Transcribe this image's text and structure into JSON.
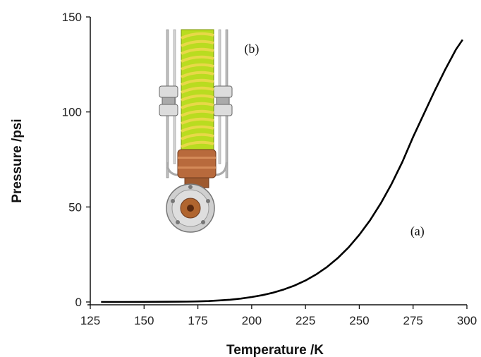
{
  "chart_data": {
    "type": "line",
    "title": "",
    "xlabel": "Temperature /K",
    "ylabel": "Pressure /psi",
    "xlim": [
      125,
      300
    ],
    "ylim": [
      0,
      150
    ],
    "xticks": [
      125,
      150,
      175,
      200,
      225,
      250,
      275,
      300
    ],
    "yticks": [
      0,
      50,
      100,
      150
    ],
    "grid": false,
    "series": [
      {
        "color": "#000000",
        "x": [
          130,
          140,
          150,
          160,
          170,
          175,
          180,
          185,
          190,
          195,
          200,
          205,
          210,
          215,
          220,
          225,
          230,
          235,
          240,
          245,
          250,
          255,
          260,
          265,
          270,
          275,
          280,
          285,
          290,
          295,
          298
        ],
        "y": [
          0.0,
          0.0,
          0.05,
          0.1,
          0.2,
          0.3,
          0.5,
          0.8,
          1.2,
          1.8,
          2.6,
          3.6,
          4.9,
          6.6,
          8.7,
          11.3,
          14.5,
          18.4,
          23.1,
          28.7,
          35.3,
          43.0,
          51.9,
          62.1,
          73.7,
          86.8,
          99.0,
          111.0,
          122.5,
          133.0,
          138.0
        ]
      }
    ],
    "annotations": [
      {
        "text": "(a)",
        "x": 277,
        "y": 35
      },
      {
        "text": "(b)",
        "x": 200,
        "y": 131
      }
    ],
    "inset_image": {
      "subject": "cryogenic sample cell on coiled tubing",
      "tubing_color": "#c8e000",
      "stripe_color": "#e8d848",
      "copper_color": "#b86a3c",
      "steel_color": "#c9c9c9"
    }
  }
}
